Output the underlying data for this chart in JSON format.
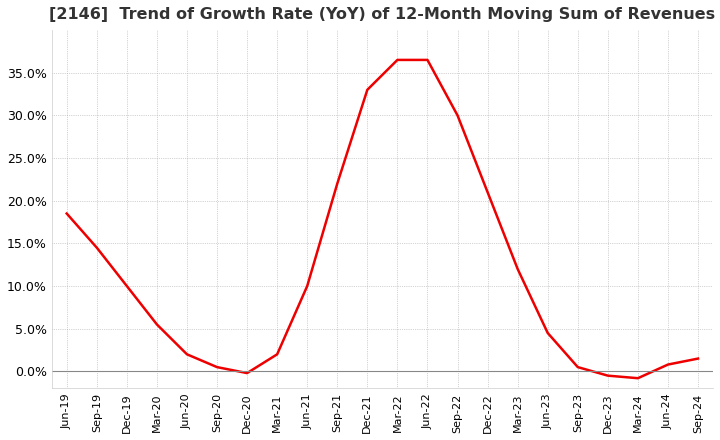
{
  "title": "[2146]  Trend of Growth Rate (YoY) of 12-Month Moving Sum of Revenues",
  "title_fontsize": 11.5,
  "line_color": "#ee0000",
  "background_color": "#ffffff",
  "plot_bg_color": "#ffffff",
  "grid_color": "#aaaaaa",
  "ylim": [
    -0.02,
    0.4
  ],
  "yticks": [
    0.0,
    0.05,
    0.1,
    0.15,
    0.2,
    0.25,
    0.3,
    0.35
  ],
  "dates": [
    "Jun-19",
    "Sep-19",
    "Dec-19",
    "Mar-20",
    "Jun-20",
    "Sep-20",
    "Dec-20",
    "Mar-21",
    "Jun-21",
    "Sep-21",
    "Dec-21",
    "Mar-22",
    "Jun-22",
    "Sep-22",
    "Dec-22",
    "Mar-23",
    "Jun-23",
    "Sep-23",
    "Dec-23",
    "Mar-24",
    "Jun-24",
    "Sep-24"
  ],
  "values": [
    0.185,
    0.145,
    0.1,
    0.055,
    0.02,
    0.005,
    -0.002,
    0.02,
    0.1,
    0.22,
    0.33,
    0.365,
    0.365,
    0.3,
    0.21,
    0.12,
    0.045,
    0.005,
    -0.005,
    -0.008,
    0.008,
    0.015
  ]
}
